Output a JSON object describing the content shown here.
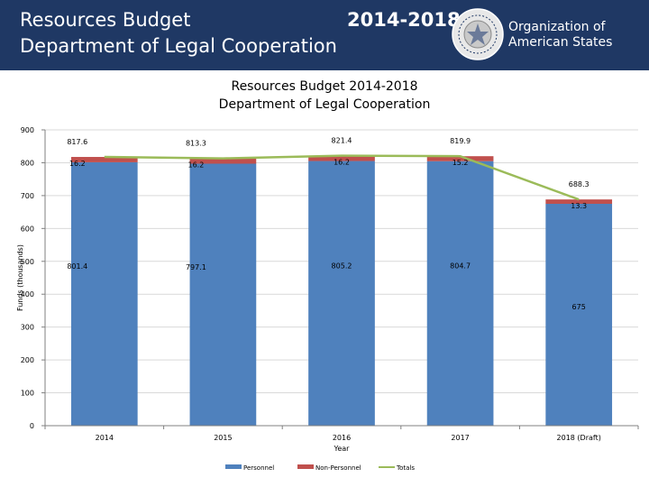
{
  "header": {
    "title_line1": "Resources Budget",
    "title_line2": "Department of Legal Cooperation",
    "years": "2014-2018",
    "org_line1": "Organization of",
    "org_line2": "American States"
  },
  "colors": {
    "header_bg": "#1f3864",
    "personnel": "#4f81bd",
    "non_personnel": "#c0504d",
    "totals": "#9bbb59"
  },
  "chart_data": {
    "type": "bar",
    "stacked": true,
    "title_line1": "Resources Budget 2014-2018",
    "title_line2": "Department of Legal Cooperation",
    "xlabel": "Year",
    "ylabel": "Funds (thousands)",
    "ylim": [
      0,
      900
    ],
    "yticks": [
      "0",
      "100",
      "200",
      "300",
      "400",
      "500",
      "600",
      "700",
      "800",
      "900"
    ],
    "categories": [
      "2014",
      "2015",
      "2016",
      "2017",
      "2018 (Draft)"
    ],
    "series": [
      {
        "name": "Personnel",
        "values": [
          801.4,
          797.1,
          805.2,
          804.7,
          675
        ],
        "labels": [
          "801.4",
          "797.1",
          "805.2",
          "804.7",
          "675"
        ]
      },
      {
        "name": "Non-Personnel",
        "values": [
          16.2,
          16.2,
          16.2,
          15.2,
          13.3
        ],
        "labels": [
          "16.2",
          "16.2",
          "16.2",
          "15.2",
          "13.3"
        ]
      },
      {
        "name": "Totals",
        "type": "line",
        "values": [
          817.6,
          813.3,
          821.4,
          819.9,
          688.3
        ],
        "labels": [
          "817.6",
          "813.3",
          "821.4",
          "819.9",
          "688.3"
        ]
      }
    ],
    "legend": [
      "Personnel",
      "Non-Personnel",
      "Totals"
    ],
    "legend_position": "bottom"
  }
}
